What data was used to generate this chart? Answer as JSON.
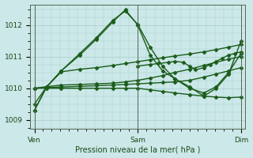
{
  "xlabel": "Pression niveau de la mer( hPa )",
  "xtick_labels": [
    "Ven",
    "Sam",
    "Dim"
  ],
  "xtick_positions": [
    0.0,
    0.5,
    1.0
  ],
  "ytick_labels": [
    "1009",
    "1010",
    "1011",
    "1012"
  ],
  "ytick_values": [
    1009,
    1010,
    1011,
    1012
  ],
  "ylim": [
    1008.72,
    1012.65
  ],
  "xlim": [
    -0.02,
    1.02
  ],
  "bg_color": "#cce8e8",
  "grid_color": "#aacece",
  "line_color": "#1a5c1a",
  "marker": "D",
  "markersize": 2.5,
  "linewidth": 1.0,
  "series": [
    {
      "x": [
        0.0,
        0.06,
        0.13,
        0.22,
        0.3,
        0.38,
        0.44,
        0.5,
        0.56,
        0.62,
        0.68,
        0.75,
        0.82,
        0.88,
        0.94,
        1.0
      ],
      "y": [
        1009.3,
        1010.05,
        1010.55,
        1011.05,
        1011.55,
        1012.1,
        1012.48,
        1012.0,
        1011.05,
        1010.55,
        1010.3,
        1010.05,
        1009.75,
        1010.0,
        1010.45,
        1011.5
      ]
    },
    {
      "x": [
        0.0,
        0.06,
        0.13,
        0.22,
        0.3,
        0.38,
        0.44,
        0.5,
        0.56,
        0.62,
        0.68,
        0.75,
        0.82,
        0.88,
        0.94,
        1.0
      ],
      "y": [
        1009.3,
        1010.05,
        1010.55,
        1011.1,
        1011.6,
        1012.15,
        1012.44,
        1012.02,
        1011.3,
        1010.7,
        1010.3,
        1010.0,
        1009.85,
        1010.05,
        1010.5,
        1011.1
      ]
    },
    {
      "x": [
        0.0,
        0.06,
        0.13,
        0.22,
        0.3,
        0.38,
        0.44,
        0.5,
        0.56,
        0.62,
        0.68,
        0.75,
        0.82,
        0.88,
        0.94,
        1.0
      ],
      "y": [
        1009.5,
        1010.05,
        1010.52,
        1010.6,
        1010.65,
        1010.72,
        1010.78,
        1010.84,
        1010.9,
        1010.96,
        1011.02,
        1011.08,
        1011.15,
        1011.22,
        1011.3,
        1011.38
      ]
    },
    {
      "x": [
        0.0,
        0.06,
        0.13,
        0.22,
        0.3,
        0.38,
        0.44,
        0.5,
        0.56,
        0.62,
        0.68,
        0.75,
        0.82,
        0.88,
        0.94,
        1.0
      ],
      "y": [
        1010.0,
        1010.05,
        1010.1,
        1010.12,
        1010.14,
        1010.16,
        1010.2,
        1010.25,
        1010.32,
        1010.4,
        1010.5,
        1010.6,
        1010.72,
        1010.82,
        1010.92,
        1011.0
      ]
    },
    {
      "x": [
        0.0,
        0.06,
        0.13,
        0.22,
        0.3,
        0.38,
        0.44,
        0.5,
        0.56,
        0.62,
        0.68,
        0.75,
        0.82,
        0.88,
        0.94,
        1.0
      ],
      "y": [
        1010.0,
        1010.02,
        1010.04,
        1010.06,
        1010.08,
        1010.1,
        1010.12,
        1010.14,
        1010.16,
        1010.18,
        1010.2,
        1010.25,
        1010.35,
        1010.45,
        1010.55,
        1010.65
      ]
    },
    {
      "x": [
        0.0,
        0.06,
        0.13,
        0.22,
        0.3,
        0.38,
        0.44,
        0.5,
        0.56,
        0.62,
        0.68,
        0.75,
        0.82,
        0.88,
        0.94,
        1.0
      ],
      "y": [
        1010.0,
        1010.0,
        1010.0,
        1010.0,
        1010.0,
        1010.0,
        1010.0,
        1010.0,
        1009.95,
        1009.9,
        1009.85,
        1009.8,
        1009.75,
        1009.72,
        1009.7,
        1009.72
      ]
    },
    {
      "x": [
        0.5,
        0.56,
        0.6,
        0.65,
        0.68,
        0.72,
        0.75,
        0.78,
        0.82,
        0.85,
        0.88,
        0.91,
        0.94,
        0.97,
        1.0
      ],
      "y": [
        1010.7,
        1010.75,
        1010.78,
        1010.82,
        1010.85,
        1010.82,
        1010.7,
        1010.58,
        1010.65,
        1010.75,
        1010.85,
        1010.95,
        1011.05,
        1011.1,
        1011.15
      ]
    }
  ]
}
